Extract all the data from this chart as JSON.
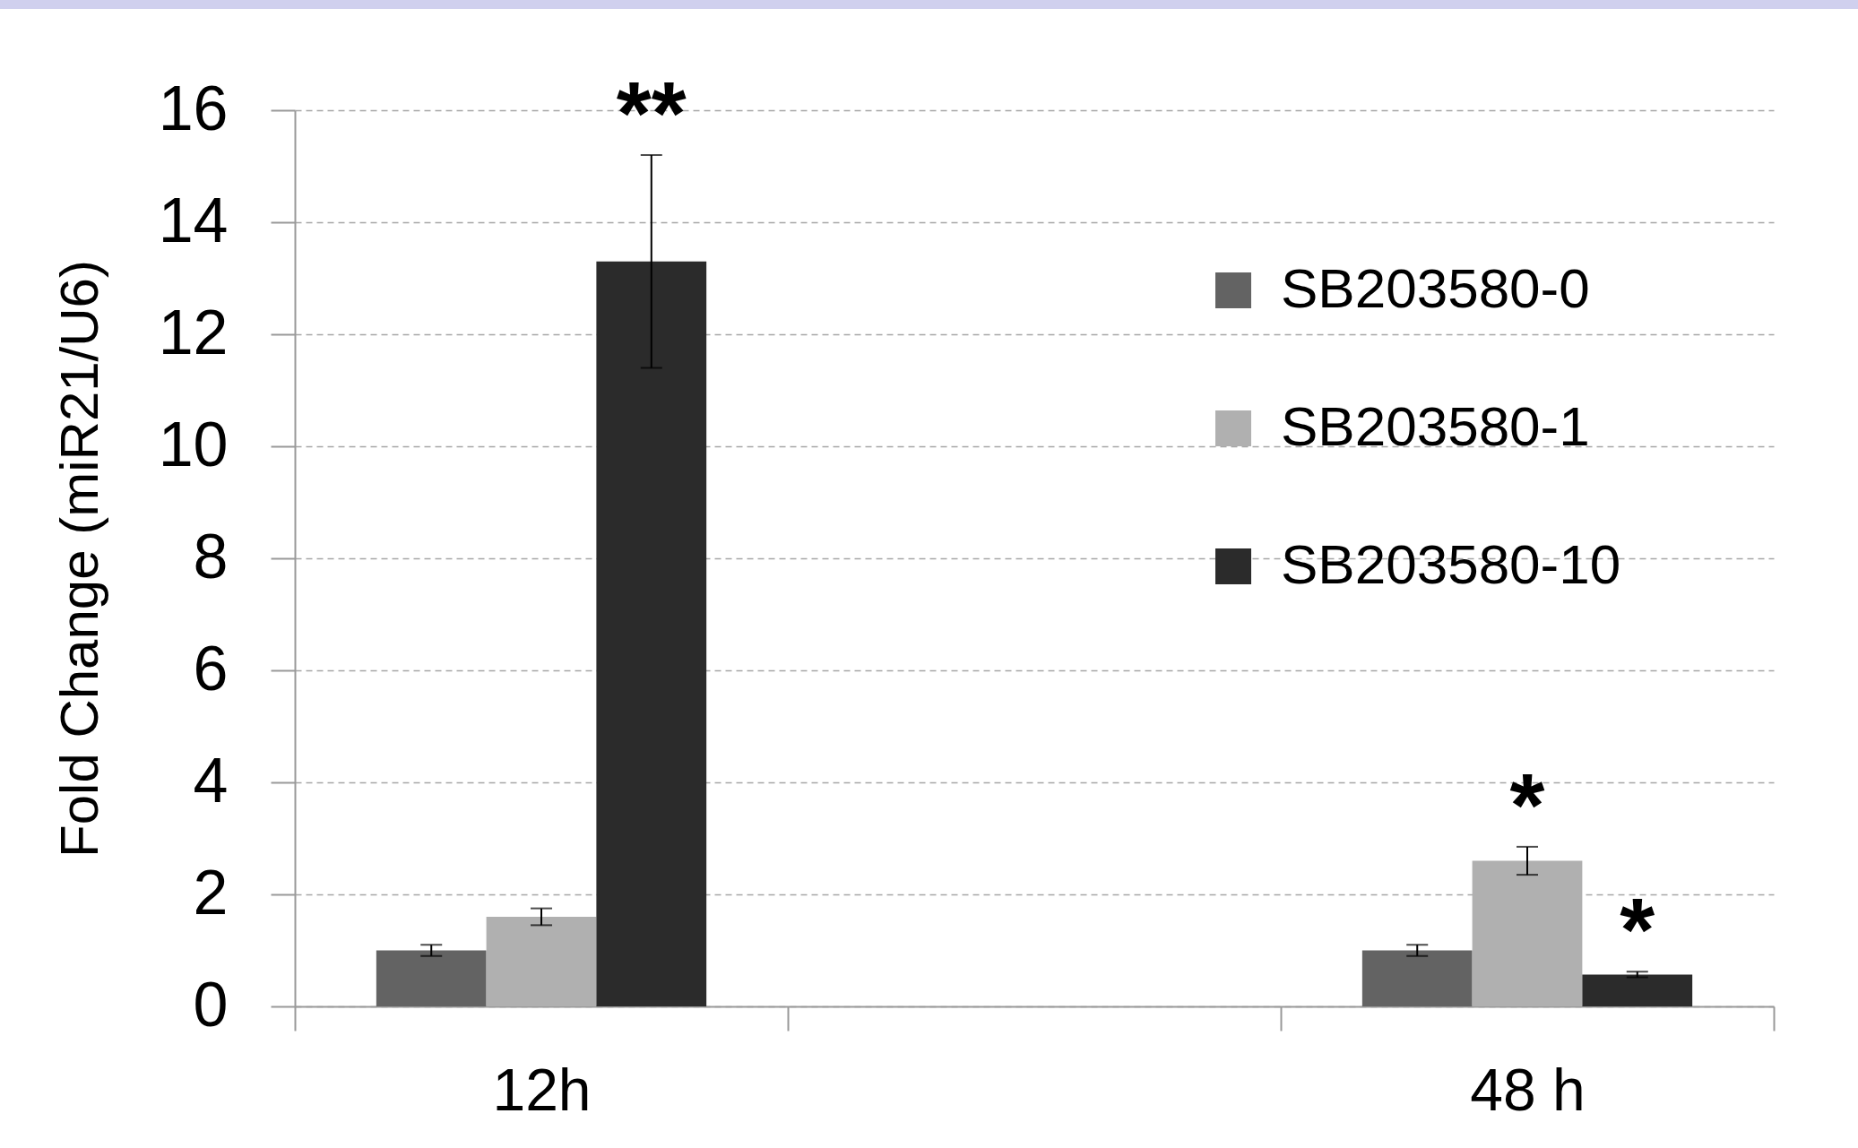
{
  "chart_data": {
    "type": "bar",
    "ylabel": "Fold Change (miR21/U6)",
    "categories": [
      "12h",
      null,
      "48 h"
    ],
    "series": [
      {
        "name": "SB203580-0",
        "color": "#636363",
        "values": [
          1.0,
          null,
          1.0
        ],
        "errors": [
          0.1,
          null,
          0.1
        ]
      },
      {
        "name": "SB203580-1",
        "color": "#b0b0b0",
        "values": [
          1.6,
          null,
          2.6
        ],
        "errors": [
          0.15,
          null,
          0.25
        ],
        "value_labels": [
          null,
          null,
          "*"
        ]
      },
      {
        "name": "SB203580-10",
        "color": "#2b2b2b",
        "values": [
          13.3,
          null,
          0.57
        ],
        "errors": [
          1.9,
          null,
          0.05
        ],
        "value_labels": [
          "**",
          null,
          "*"
        ]
      }
    ],
    "ylim": [
      0,
      16
    ],
    "yticks": [
      0,
      2,
      4,
      6,
      8,
      10,
      12,
      14,
      16
    ],
    "grid": "y",
    "legend": "top right"
  }
}
